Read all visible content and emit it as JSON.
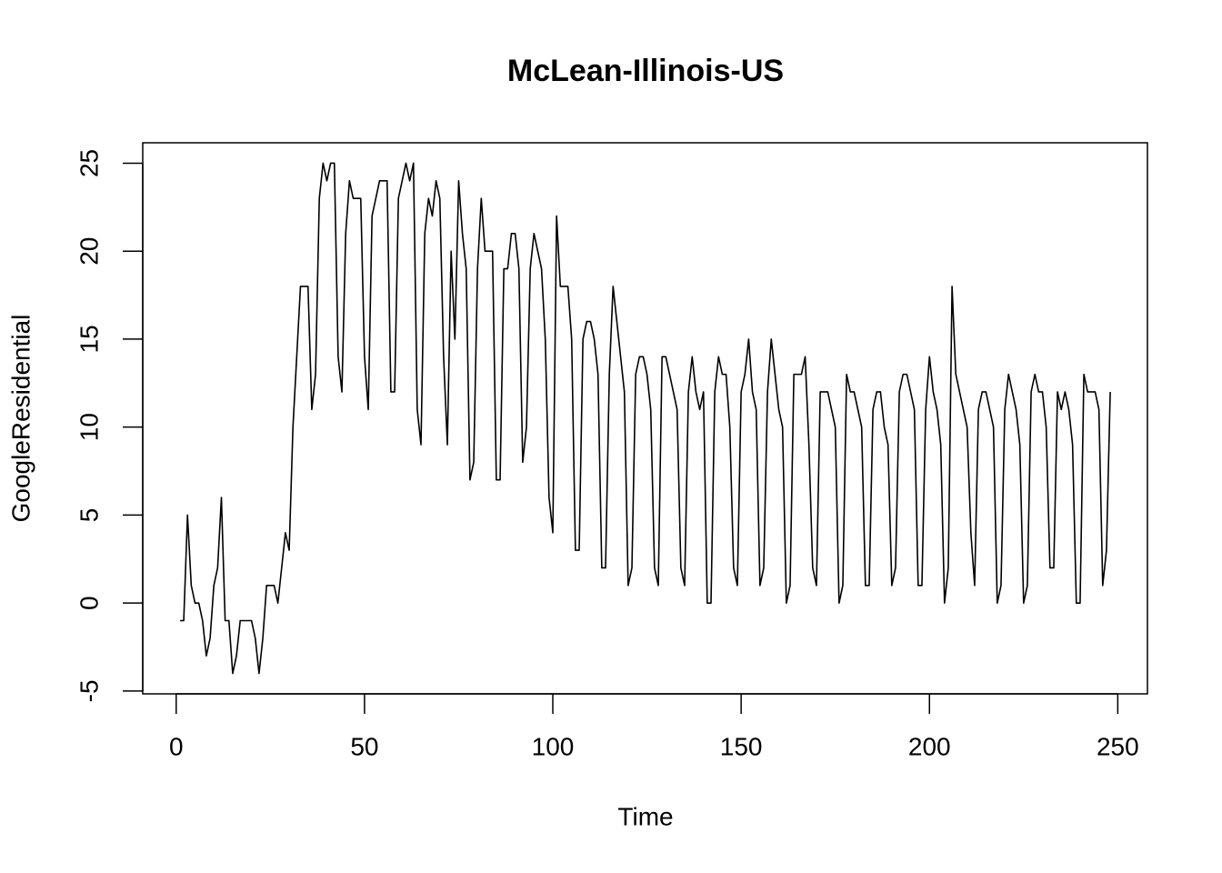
{
  "chart_data": {
    "type": "line",
    "title": "McLean-Illinois-US",
    "xlabel": "Time",
    "ylabel": "GoogleResidential",
    "x": [
      1,
      2,
      3,
      4,
      5,
      6,
      7,
      8,
      9,
      10,
      11,
      12,
      13,
      14,
      15,
      16,
      17,
      18,
      19,
      20,
      21,
      22,
      23,
      24,
      25,
      26,
      27,
      28,
      29,
      30,
      31,
      32,
      33,
      34,
      35,
      36,
      37,
      38,
      39,
      40,
      41,
      42,
      43,
      44,
      45,
      46,
      47,
      48,
      49,
      50,
      51,
      52,
      53,
      54,
      55,
      56,
      57,
      58,
      59,
      60,
      61,
      62,
      63,
      64,
      65,
      66,
      67,
      68,
      69,
      70,
      71,
      72,
      73,
      74,
      75,
      76,
      77,
      78,
      79,
      80,
      81,
      82,
      83,
      84,
      85,
      86,
      87,
      88,
      89,
      90,
      91,
      92,
      93,
      94,
      95,
      96,
      97,
      98,
      99,
      100,
      101,
      102,
      103,
      104,
      105,
      106,
      107,
      108,
      109,
      110,
      111,
      112,
      113,
      114,
      115,
      116,
      117,
      118,
      119,
      120,
      121,
      122,
      123,
      124,
      125,
      126,
      127,
      128,
      129,
      130,
      131,
      132,
      133,
      134,
      135,
      136,
      137,
      138,
      139,
      140,
      141,
      142,
      143,
      144,
      145,
      146,
      147,
      148,
      149,
      150,
      151,
      152,
      153,
      154,
      155,
      156,
      157,
      158,
      159,
      160,
      161,
      162,
      163,
      164,
      165,
      166,
      167,
      168,
      169,
      170,
      171,
      172,
      173,
      174,
      175,
      176,
      177,
      178,
      179,
      180,
      181,
      182,
      183,
      184,
      185,
      186,
      187,
      188,
      189,
      190,
      191,
      192,
      193,
      194,
      195,
      196,
      197,
      198,
      199,
      200,
      201,
      202,
      203,
      204,
      205,
      206,
      207,
      208,
      209,
      210,
      211,
      212,
      213,
      214,
      215,
      216,
      217,
      218,
      219,
      220,
      221,
      222,
      223,
      224,
      225,
      226,
      227,
      228,
      229,
      230,
      231,
      232,
      233,
      234,
      235,
      236,
      237,
      238,
      239,
      240,
      241,
      242,
      243,
      244,
      245,
      246,
      247,
      248
    ],
    "series": [
      {
        "name": "GoogleResidential",
        "color": "#000000",
        "values": [
          -1,
          -1,
          5,
          1,
          0,
          0,
          -1,
          -3,
          -2,
          1,
          2,
          6,
          -1,
          -1,
          -4,
          -3,
          -1,
          -1,
          -1,
          -1,
          -2,
          -4,
          -2,
          1,
          1,
          1,
          0,
          2,
          4,
          3,
          10,
          14,
          18,
          18,
          18,
          11,
          13,
          23,
          25,
          24,
          25,
          25,
          14,
          12,
          21,
          24,
          23,
          23,
          23,
          14,
          11,
          22,
          23,
          24,
          24,
          24,
          12,
          12,
          23,
          24,
          25,
          24,
          25,
          11,
          9,
          21,
          23,
          22,
          24,
          23,
          14,
          9,
          20,
          15,
          24,
          21,
          19,
          7,
          8,
          19,
          23,
          20,
          20,
          20,
          7,
          7,
          19,
          19,
          21,
          21,
          19,
          8,
          10,
          19,
          21,
          20,
          19,
          15,
          6,
          4,
          22,
          18,
          18,
          18,
          15,
          3,
          3,
          15,
          16,
          16,
          15,
          13,
          2,
          2,
          13,
          18,
          16,
          14,
          12,
          1,
          2,
          13,
          14,
          14,
          13,
          11,
          2,
          1,
          14,
          14,
          13,
          12,
          11,
          2,
          1,
          12,
          14,
          12,
          11,
          12,
          0,
          0,
          12,
          14,
          13,
          13,
          10,
          2,
          1,
          12,
          13,
          15,
          12,
          11,
          1,
          2,
          12,
          15,
          13,
          11,
          10,
          0,
          1,
          13,
          13,
          13,
          14,
          9,
          2,
          1,
          12,
          12,
          12,
          11,
          10,
          0,
          1,
          13,
          12,
          12,
          11,
          10,
          1,
          1,
          11,
          12,
          12,
          10,
          9,
          1,
          2,
          12,
          13,
          13,
          12,
          11,
          1,
          1,
          11,
          14,
          12,
          11,
          9,
          0,
          2,
          18,
          13,
          12,
          11,
          10,
          4,
          1,
          11,
          12,
          12,
          11,
          10,
          0,
          1,
          11,
          13,
          12,
          11,
          9,
          0,
          1,
          12,
          13,
          12,
          12,
          10,
          2,
          2,
          12,
          11,
          12,
          11,
          9,
          0,
          0,
          13,
          12,
          12,
          12,
          11,
          1,
          3,
          12
        ]
      }
    ],
    "xlim": [
      -8.88,
      257.88
    ],
    "xticks": [
      0,
      50,
      100,
      150,
      200,
      250
    ],
    "ylim": [
      -5.16,
      26.16
    ],
    "yticks": [
      -5,
      0,
      5,
      10,
      15,
      20,
      25
    ],
    "grid": false
  }
}
